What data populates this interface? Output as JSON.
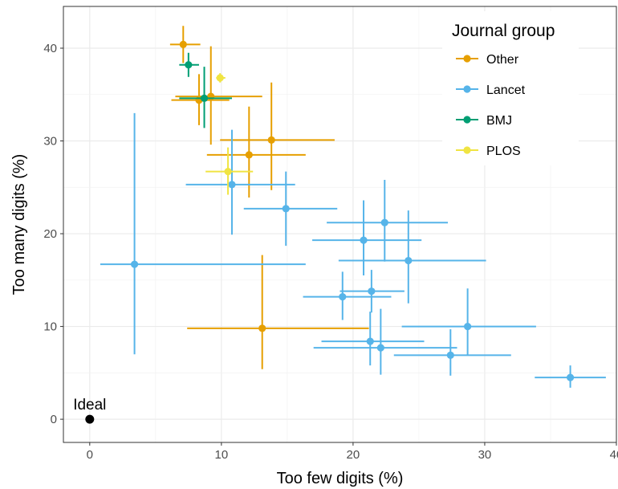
{
  "chart_data": {
    "type": "scatter",
    "title": "",
    "xlabel": "Too few digits (%)",
    "ylabel": "Too many digits (%)",
    "xlim": [
      -2,
      40
    ],
    "ylim": [
      -2.5,
      44.5
    ],
    "x_ticks": [
      0,
      10,
      20,
      30,
      40
    ],
    "y_ticks": [
      0,
      10,
      20,
      30,
      40
    ],
    "x_tick_labels": [
      "0",
      "10",
      "20",
      "30",
      "40"
    ],
    "y_tick_labels": [
      "0",
      "10",
      "20",
      "30",
      "40"
    ],
    "grid": true,
    "legend": {
      "title": "Journal group",
      "placement": "top-right",
      "entries": [
        {
          "label": "Other",
          "color": "#E69F00"
        },
        {
          "label": "Lancet",
          "color": "#56B4E9"
        },
        {
          "label": "BMJ",
          "color": "#009E73"
        },
        {
          "label": "PLOS",
          "color": "#F0E442"
        }
      ]
    },
    "annotation": {
      "label": "Ideal",
      "x": 0,
      "y": 0,
      "color": "#000000"
    },
    "series": [
      {
        "name": "Other",
        "color": "#E69F00",
        "points": [
          {
            "x": 7.1,
            "y": 40.4,
            "xlo": 6.1,
            "xhi": 8.4,
            "ylo": 38.4,
            "yhi": 42.4
          },
          {
            "x": 9.2,
            "y": 34.8,
            "xlo": 6.5,
            "xhi": 13.1,
            "ylo": 29.6,
            "yhi": 40.2
          },
          {
            "x": 8.3,
            "y": 34.4,
            "xlo": 6.2,
            "xhi": 10.6,
            "ylo": 31.7,
            "yhi": 37.2
          },
          {
            "x": 13.8,
            "y": 30.1,
            "xlo": 9.9,
            "xhi": 18.6,
            "ylo": 24.7,
            "yhi": 36.3
          },
          {
            "x": 12.1,
            "y": 28.5,
            "xlo": 8.9,
            "xhi": 16.4,
            "ylo": 23.9,
            "yhi": 33.7
          },
          {
            "x": 13.1,
            "y": 9.8,
            "xlo": 7.4,
            "xhi": 21.2,
            "ylo": 5.4,
            "yhi": 17.7
          }
        ]
      },
      {
        "name": "Lancet",
        "color": "#56B4E9",
        "points": [
          {
            "x": 3.4,
            "y": 16.7,
            "xlo": 0.8,
            "xhi": 16.4,
            "ylo": 7.0,
            "yhi": 33.0
          },
          {
            "x": 10.8,
            "y": 25.3,
            "xlo": 7.3,
            "xhi": 15.6,
            "ylo": 19.9,
            "yhi": 31.2
          },
          {
            "x": 14.9,
            "y": 22.7,
            "xlo": 11.7,
            "xhi": 18.8,
            "ylo": 18.7,
            "yhi": 26.7
          },
          {
            "x": 22.4,
            "y": 21.2,
            "xlo": 18.0,
            "xhi": 27.2,
            "ylo": 17.0,
            "yhi": 25.8
          },
          {
            "x": 20.8,
            "y": 19.3,
            "xlo": 16.9,
            "xhi": 25.2,
            "ylo": 15.5,
            "yhi": 23.6
          },
          {
            "x": 24.2,
            "y": 17.1,
            "xlo": 18.9,
            "xhi": 30.1,
            "ylo": 12.5,
            "yhi": 22.5
          },
          {
            "x": 21.4,
            "y": 13.8,
            "xlo": 19.0,
            "xhi": 23.9,
            "ylo": 11.5,
            "yhi": 16.1
          },
          {
            "x": 19.2,
            "y": 13.2,
            "xlo": 16.2,
            "xhi": 22.9,
            "ylo": 10.7,
            "yhi": 15.9
          },
          {
            "x": 28.7,
            "y": 10.0,
            "xlo": 23.7,
            "xhi": 33.9,
            "ylo": 6.9,
            "yhi": 14.1
          },
          {
            "x": 21.3,
            "y": 8.4,
            "xlo": 17.6,
            "xhi": 25.4,
            "ylo": 5.8,
            "yhi": 11.6
          },
          {
            "x": 22.1,
            "y": 7.7,
            "xlo": 17.0,
            "xhi": 27.9,
            "ylo": 4.8,
            "yhi": 11.9
          },
          {
            "x": 27.4,
            "y": 6.9,
            "xlo": 23.1,
            "xhi": 32.0,
            "ylo": 4.7,
            "yhi": 9.7
          },
          {
            "x": 36.5,
            "y": 4.5,
            "xlo": 33.8,
            "xhi": 39.2,
            "ylo": 3.4,
            "yhi": 5.8
          }
        ]
      },
      {
        "name": "BMJ",
        "color": "#009E73",
        "points": [
          {
            "x": 7.5,
            "y": 38.2,
            "xlo": 6.8,
            "xhi": 8.3,
            "ylo": 36.9,
            "yhi": 39.5
          },
          {
            "x": 8.7,
            "y": 34.6,
            "xlo": 6.8,
            "xhi": 10.8,
            "ylo": 31.4,
            "yhi": 38.0
          }
        ]
      },
      {
        "name": "PLOS",
        "color": "#F0E442",
        "points": [
          {
            "x": 9.9,
            "y": 36.8,
            "xlo": 9.6,
            "xhi": 10.3,
            "ylo": 36.3,
            "yhi": 37.3
          },
          {
            "x": 10.5,
            "y": 26.7,
            "xlo": 8.8,
            "xhi": 12.4,
            "ylo": 24.2,
            "yhi": 29.3
          }
        ]
      }
    ]
  }
}
